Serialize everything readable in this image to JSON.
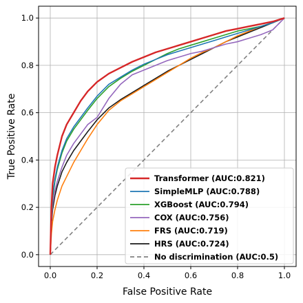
{
  "chart_data": {
    "type": "line",
    "title": "",
    "xlabel": "False Positive Rate",
    "ylabel": "True Positive Rate",
    "xlim": [
      -0.05,
      1.05
    ],
    "ylim": [
      -0.05,
      1.05
    ],
    "xticks": [
      "0.0",
      "0.2",
      "0.4",
      "0.6",
      "0.8",
      "1.0"
    ],
    "yticks": [
      "0.0",
      "0.2",
      "0.4",
      "0.6",
      "0.8",
      "1.0"
    ],
    "grid": true,
    "legend_position": "bottom-right",
    "series": [
      {
        "name": "Transformer (AUC:0.821)",
        "color": "#d62728",
        "style": "solid",
        "x": [
          0,
          0.005,
          0.01,
          0.02,
          0.03,
          0.05,
          0.07,
          0.1,
          0.13,
          0.16,
          0.2,
          0.25,
          0.3,
          0.35,
          0.4,
          0.45,
          0.5,
          0.55,
          0.6,
          0.65,
          0.7,
          0.75,
          0.8,
          0.85,
          0.9,
          0.95,
          1.0
        ],
        "y": [
          0,
          0.2,
          0.3,
          0.37,
          0.42,
          0.5,
          0.55,
          0.6,
          0.65,
          0.69,
          0.73,
          0.765,
          0.79,
          0.815,
          0.835,
          0.855,
          0.87,
          0.885,
          0.9,
          0.915,
          0.93,
          0.945,
          0.955,
          0.965,
          0.975,
          0.985,
          1.0
        ]
      },
      {
        "name": "SimpleMLP (AUC:0.788)",
        "color": "#1f77b4",
        "style": "solid",
        "x": [
          0,
          0.005,
          0.01,
          0.02,
          0.03,
          0.05,
          0.07,
          0.1,
          0.13,
          0.16,
          0.2,
          0.25,
          0.3,
          0.35,
          0.4,
          0.45,
          0.5,
          0.55,
          0.6,
          0.65,
          0.7,
          0.75,
          0.8,
          0.85,
          0.9,
          0.95,
          1.0
        ],
        "y": [
          0,
          0.17,
          0.25,
          0.32,
          0.37,
          0.44,
          0.49,
          0.54,
          0.58,
          0.62,
          0.67,
          0.72,
          0.75,
          0.78,
          0.805,
          0.825,
          0.845,
          0.86,
          0.875,
          0.89,
          0.905,
          0.92,
          0.935,
          0.95,
          0.965,
          0.98,
          1.0
        ]
      },
      {
        "name": "XGBoost (AUC:0.794)",
        "color": "#2ca02c",
        "style": "solid",
        "x": [
          0,
          0.005,
          0.01,
          0.02,
          0.03,
          0.05,
          0.07,
          0.1,
          0.13,
          0.16,
          0.2,
          0.25,
          0.3,
          0.35,
          0.4,
          0.45,
          0.5,
          0.55,
          0.6,
          0.65,
          0.7,
          0.75,
          0.8,
          0.85,
          0.9,
          0.95,
          1.0
        ],
        "y": [
          0,
          0.16,
          0.24,
          0.31,
          0.36,
          0.43,
          0.48,
          0.53,
          0.57,
          0.61,
          0.66,
          0.71,
          0.745,
          0.775,
          0.8,
          0.825,
          0.85,
          0.87,
          0.885,
          0.9,
          0.915,
          0.93,
          0.945,
          0.955,
          0.965,
          0.98,
          1.0
        ]
      },
      {
        "name": "COX (AUC:0.756)",
        "color": "#9467bd",
        "style": "solid",
        "x": [
          0,
          0.005,
          0.01,
          0.02,
          0.03,
          0.05,
          0.07,
          0.1,
          0.13,
          0.16,
          0.2,
          0.25,
          0.3,
          0.35,
          0.4,
          0.45,
          0.5,
          0.55,
          0.6,
          0.65,
          0.7,
          0.75,
          0.8,
          0.85,
          0.9,
          0.95,
          1.0
        ],
        "y": [
          0,
          0.14,
          0.21,
          0.27,
          0.31,
          0.37,
          0.42,
          0.47,
          0.51,
          0.55,
          0.58,
          0.66,
          0.72,
          0.76,
          0.78,
          0.8,
          0.82,
          0.835,
          0.85,
          0.86,
          0.875,
          0.89,
          0.9,
          0.915,
          0.93,
          0.95,
          1.0
        ]
      },
      {
        "name": "FRS (AUC:0.719)",
        "color": "#ff7f0e",
        "style": "solid",
        "x": [
          0,
          0.005,
          0.01,
          0.02,
          0.03,
          0.05,
          0.07,
          0.1,
          0.13,
          0.16,
          0.2,
          0.25,
          0.3,
          0.35,
          0.4,
          0.45,
          0.5,
          0.55,
          0.6,
          0.65,
          0.7,
          0.75,
          0.8,
          0.85,
          0.9,
          0.95,
          1.0
        ],
        "y": [
          0,
          0.09,
          0.14,
          0.19,
          0.23,
          0.29,
          0.33,
          0.39,
          0.44,
          0.49,
          0.55,
          0.61,
          0.65,
          0.68,
          0.71,
          0.74,
          0.77,
          0.8,
          0.83,
          0.855,
          0.875,
          0.9,
          0.925,
          0.945,
          0.965,
          0.98,
          1.0
        ]
      },
      {
        "name": "HRS (AUC:0.724)",
        "color": "#1a1a1a",
        "style": "solid",
        "x": [
          0,
          0.005,
          0.01,
          0.02,
          0.03,
          0.05,
          0.07,
          0.1,
          0.13,
          0.16,
          0.2,
          0.25,
          0.3,
          0.35,
          0.4,
          0.45,
          0.5,
          0.55,
          0.6,
          0.65,
          0.7,
          0.75,
          0.8,
          0.85,
          0.9,
          0.95,
          1.0
        ],
        "y": [
          0,
          0.13,
          0.19,
          0.25,
          0.29,
          0.35,
          0.39,
          0.44,
          0.48,
          0.52,
          0.57,
          0.62,
          0.655,
          0.685,
          0.715,
          0.745,
          0.775,
          0.8,
          0.825,
          0.85,
          0.875,
          0.9,
          0.92,
          0.94,
          0.96,
          0.98,
          1.0
        ]
      },
      {
        "name": "No discrimination (AUC:0.5)",
        "color": "#808080",
        "style": "dashed",
        "x": [
          0,
          1
        ],
        "y": [
          0,
          1
        ]
      }
    ]
  }
}
